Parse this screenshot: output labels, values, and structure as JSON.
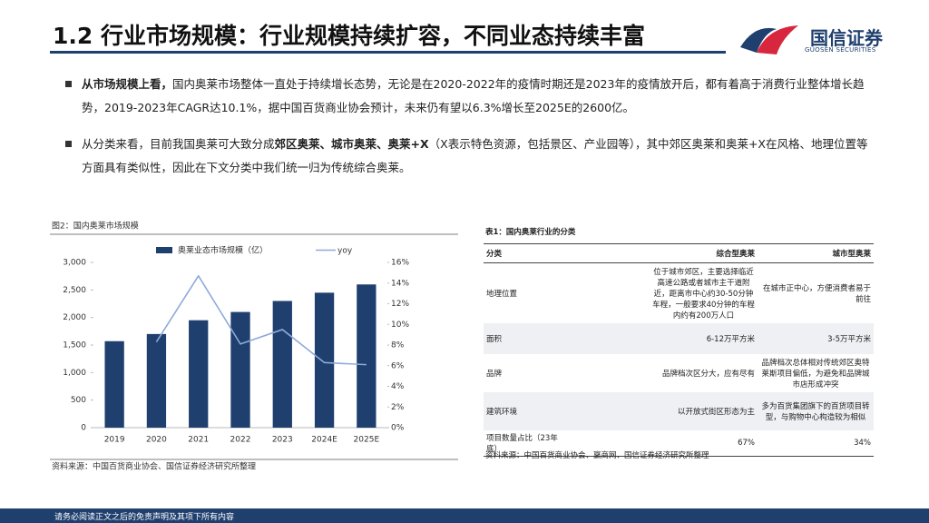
{
  "header": {
    "title": "1.2 行业市场规模：行业规模持续扩容，不同业态持续丰富",
    "logo": "国信证券",
    "logo_sub": "GUOSEN SECURITIES"
  },
  "bullets": [
    {
      "bold": "从市场规模上看，",
      "text": "国内奥莱市场整体一直处于持续增长态势，无论是在2020-2022年的疫情时期还是2023年的疫情放开后，都有着高于消费行业整体增长趋势，2019-2023年CAGR达10.1%，据中国百货商业协会预计，未来仍有望以6.3%增长至2025E的2600亿。"
    },
    {
      "pre": "从分类来看，目前我国奥莱可大致分成",
      "bold": "郊区奥莱、城市奥莱、奥莱+X",
      "text": "（X表示特色资源，包括景区、产业园等），其中郊区奥莱和奥莱+X在风格、地理位置等方面具有类似性，因此在下文分类中我们统一归为传统综合奥莱。"
    }
  ],
  "chart_data": {
    "type": "bar",
    "title": "图2：国内奥莱市场规模",
    "categories": [
      "2019",
      "2020",
      "2021",
      "2022",
      "2023",
      "2024E",
      "2025E"
    ],
    "series": [
      {
        "name": "奥莱业态市场规模（亿）",
        "type": "bar",
        "color": "#1f3f6e",
        "values": [
          1570,
          1700,
          1950,
          2100,
          2300,
          2450,
          2600
        ]
      },
      {
        "name": "yoy",
        "type": "line",
        "axis": "y2",
        "color": "#8eaadb",
        "values": [
          null,
          8.3,
          14.7,
          8.1,
          9.5,
          6.3,
          6.1
        ]
      }
    ],
    "ylim": [
      0,
      3000
    ],
    "yticks": [
      0,
      500,
      {
        "value": 1000,
        "label": "1,000"
      },
      {
        "value": 1500,
        "label": "1,500"
      },
      {
        "value": 2000,
        "label": "2,000"
      },
      {
        "value": 2500,
        "label": "2,500"
      },
      {
        "value": 3000,
        "label": "3,000"
      }
    ],
    "y2lim": [
      0,
      16
    ],
    "y2ticks": [
      {
        "value": 0,
        "label": "0%"
      },
      {
        "value": 2,
        "label": "2%"
      },
      {
        "value": 4,
        "label": "4%"
      },
      {
        "value": 6,
        "label": "6%"
      },
      {
        "value": 8,
        "label": "8%"
      },
      {
        "value": 10,
        "label": "10%"
      },
      {
        "value": 12,
        "label": "12%"
      },
      {
        "value": 14,
        "label": "14%"
      },
      {
        "value": 16,
        "label": "16%"
      }
    ],
    "source": "资料来源：中国百货商业协会、国信证券经济研究所整理"
  },
  "table": {
    "title": "表1：国内奥莱行业的分类",
    "header": [
      "分类",
      "综合型奥莱",
      "城市型奥莱"
    ],
    "rows": [
      [
        "地理位置",
        "位于城市郊区，主要选择临近高速公路或者城市主干道附近，距离市中心约30-50分钟车程，一般要求40分钟的车程内约有200万人口",
        "在城市正中心，方便消费者易于前往"
      ],
      [
        "面积",
        "6-12万平方米",
        "3-5万平方米"
      ],
      [
        "品牌",
        "品牌档次区分大，应有尽有",
        "品牌档次总体相对传统郊区奥特莱斯项目偏低，为避免和品牌城市店形成冲突"
      ],
      [
        "建筑环境",
        "以开放式街区形态为主",
        "多为百货集团旗下的百货项目转型，与购物中心构造较为相似"
      ],
      [
        "项目数量占比（23年底）",
        "67%",
        "34%"
      ]
    ],
    "source": "资料来源：中国百货商业协会、赢商网、国信证券经济研究所整理"
  },
  "footer": "请务必阅读正文之后的免责声明及其项下所有内容"
}
